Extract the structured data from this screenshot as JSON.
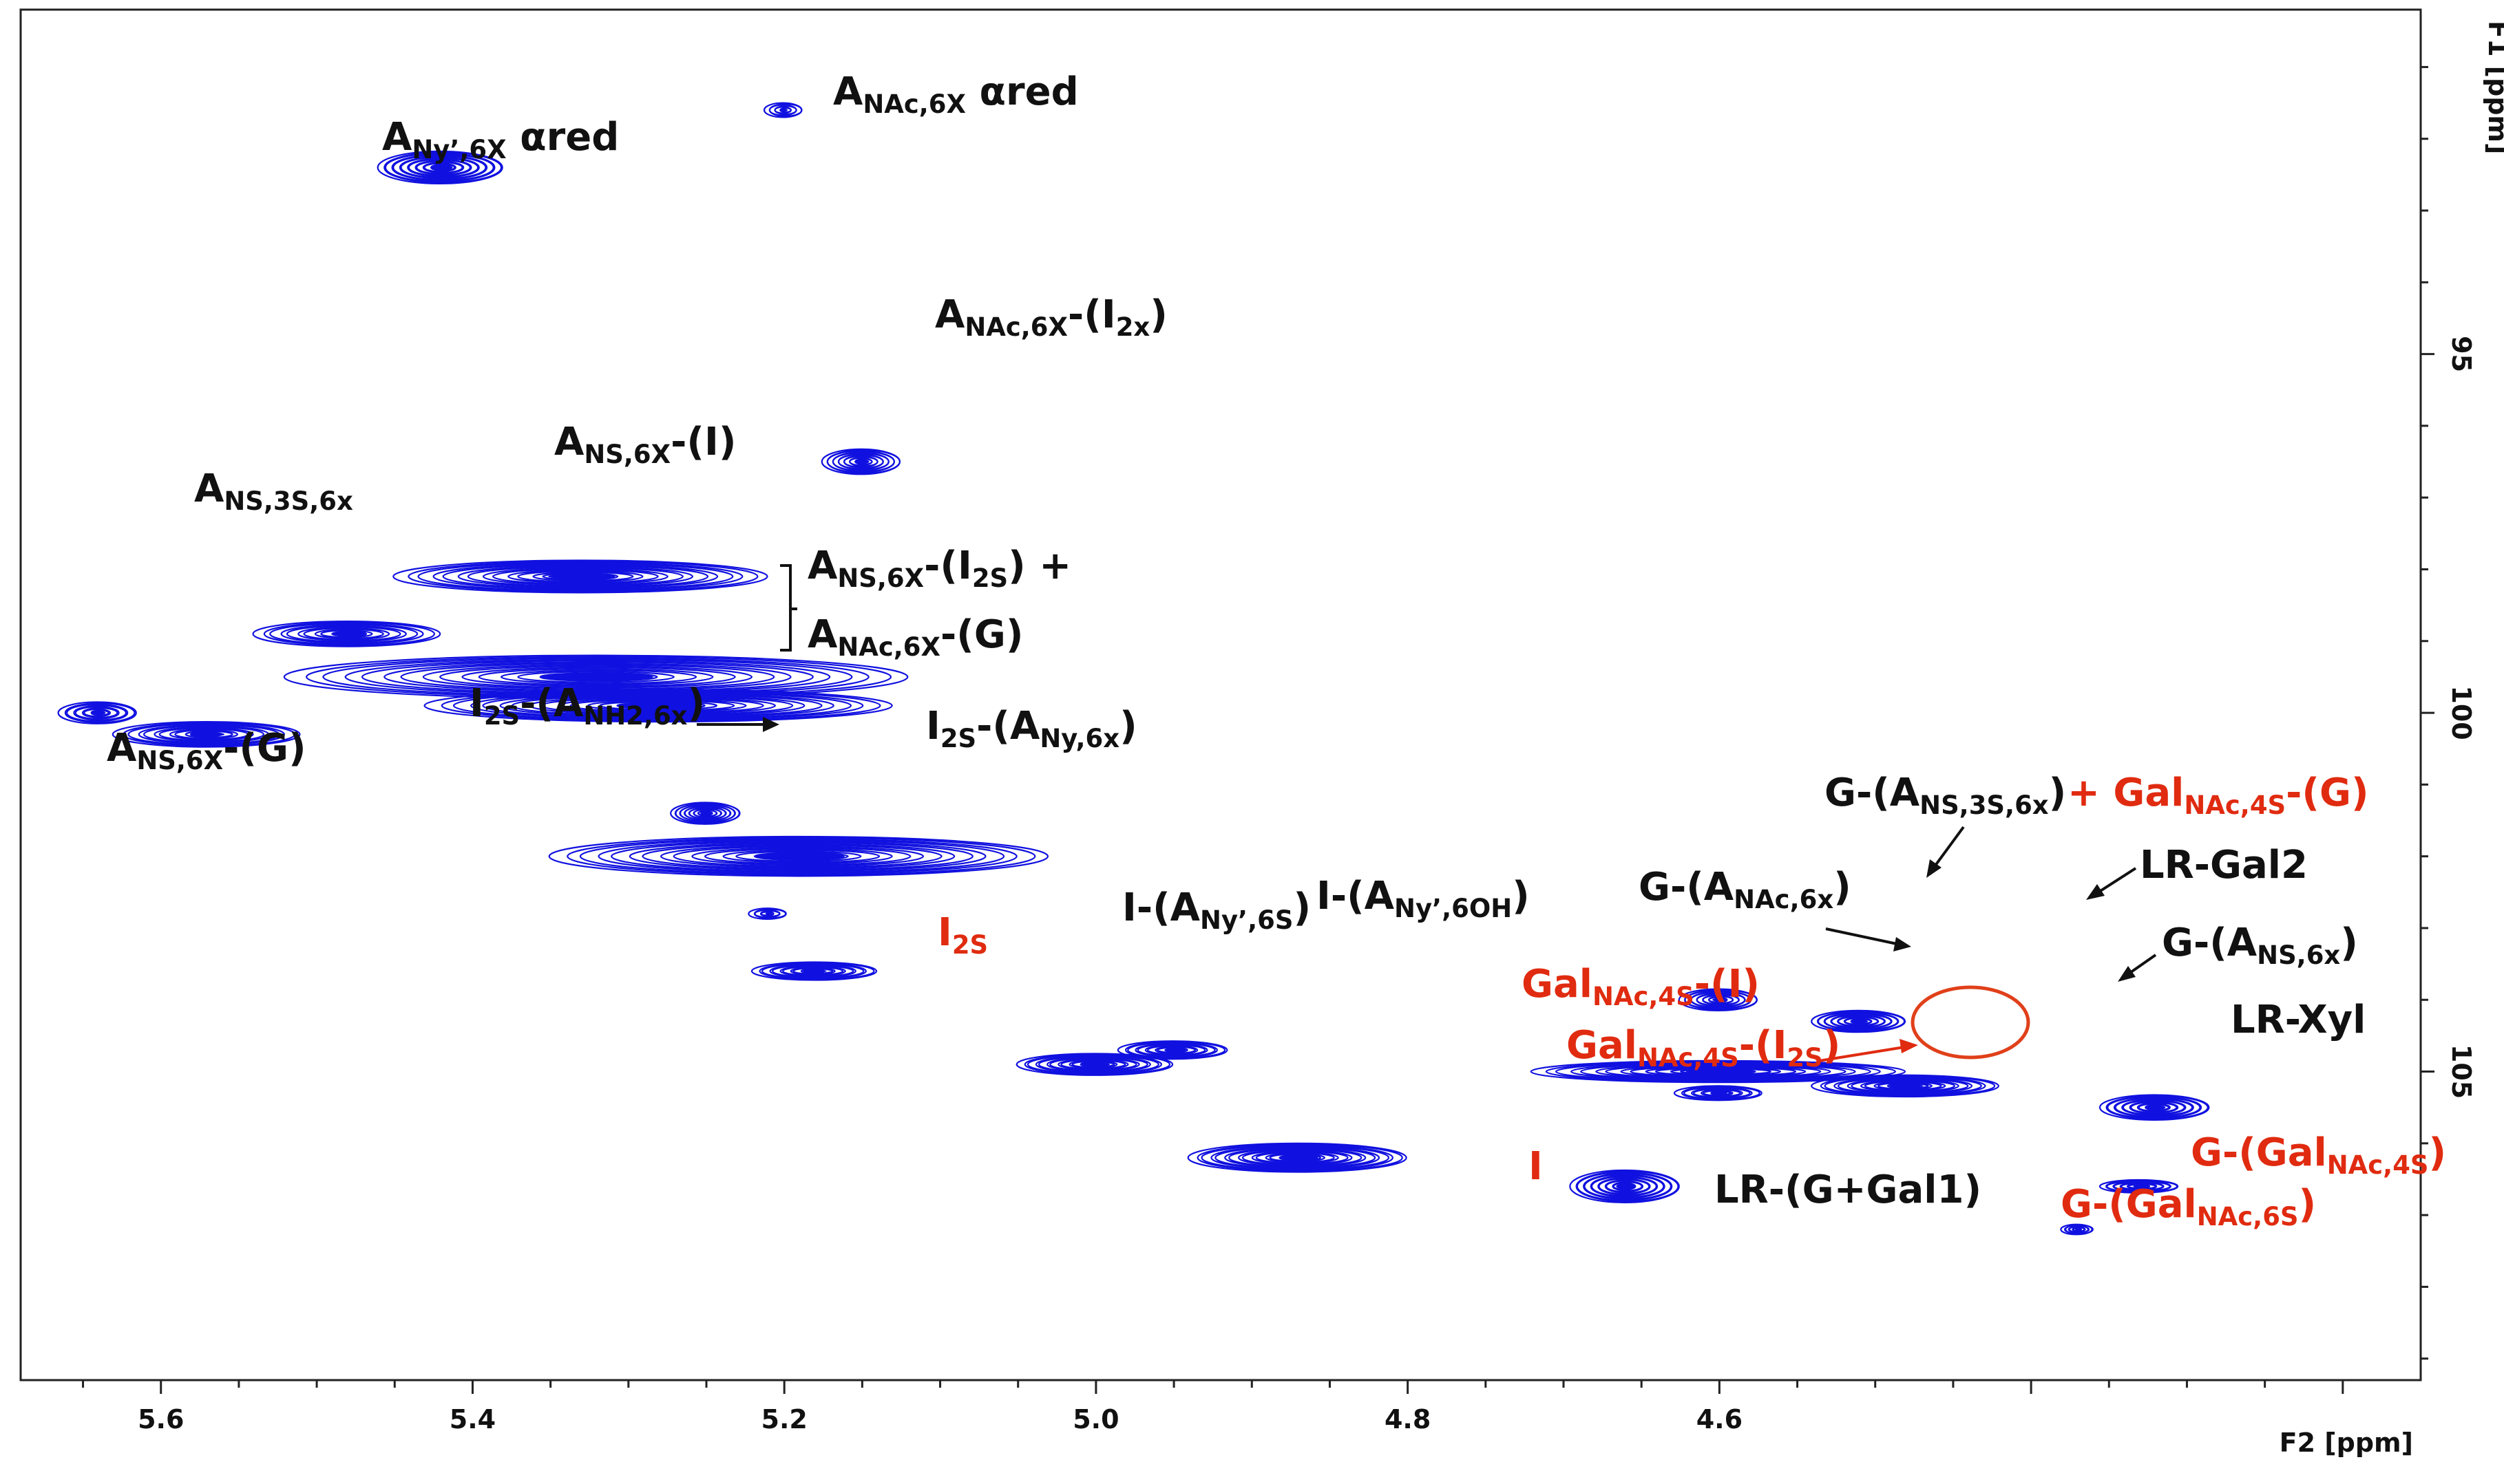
{
  "chart_data": {
    "type": "2d-nmr-contour",
    "xlabel": "F2 [ppm]",
    "ylabel": "F1 [ppm]",
    "x_ticks": [
      "5.6",
      "5.4",
      "5.2",
      "5.0",
      "4.8",
      "4.6"
    ],
    "y_ticks": [
      "95",
      "100",
      "105"
    ],
    "x_range": [
      5.69,
      4.15
    ],
    "y_range": [
      90.2,
      109.3
    ],
    "colors": {
      "contour": "#1010e0",
      "black_label": "#111111",
      "red_label": "#e02b10",
      "circle": "#e0401a"
    },
    "peaks": [
      {
        "name": "A_Ny'6X_ared",
        "x": 5.42,
        "y": 92.4,
        "w": 0.04,
        "h": 0.45,
        "level": 1.0
      },
      {
        "name": "A_NAc6X_ared",
        "x": 5.2,
        "y": 91.6,
        "w": 0.012,
        "h": 0.2,
        "level": 0.25
      },
      {
        "name": "A_NAc6X_I2x",
        "x": 5.15,
        "y": 96.5,
        "w": 0.025,
        "h": 0.35,
        "level": 0.8
      },
      {
        "name": "A_NS6X_I",
        "x": 5.33,
        "y": 98.1,
        "w": 0.12,
        "h": 0.45,
        "level": 0.9
      },
      {
        "name": "A_NS3S6x",
        "x": 5.48,
        "y": 98.9,
        "w": 0.06,
        "h": 0.35,
        "level": 0.6
      },
      {
        "name": "A_NS6X_I2S_cluster",
        "x": 5.32,
        "y": 99.5,
        "w": 0.2,
        "h": 0.6,
        "level": 1.0
      },
      {
        "name": "A_NAc6X_G_cluster",
        "x": 5.28,
        "y": 99.9,
        "w": 0.15,
        "h": 0.45,
        "level": 1.0
      },
      {
        "name": "A_NS6X_G",
        "x": 5.57,
        "y": 100.3,
        "w": 0.06,
        "h": 0.35,
        "level": 0.7
      },
      {
        "name": "A_NS6X_G_tail",
        "x": 5.64,
        "y": 100.0,
        "w": 0.025,
        "h": 0.3,
        "level": 0.45
      },
      {
        "name": "I2S_ANH2",
        "x": 5.25,
        "y": 101.4,
        "w": 0.022,
        "h": 0.3,
        "level": 0.9
      },
      {
        "name": "I2S_ANy6x",
        "x": 5.19,
        "y": 102.0,
        "w": 0.16,
        "h": 0.55,
        "level": 1.0
      },
      {
        "name": "small_a",
        "x": 5.21,
        "y": 102.8,
        "w": 0.012,
        "h": 0.15,
        "level": 0.2
      },
      {
        "name": "I2S",
        "x": 5.18,
        "y": 103.6,
        "w": 0.04,
        "h": 0.25,
        "level": 0.7
      },
      {
        "name": "I_ANy6S",
        "x": 5.0,
        "y": 104.9,
        "w": 0.05,
        "h": 0.3,
        "level": 0.8
      },
      {
        "name": "I_ANy6OH",
        "x": 4.95,
        "y": 104.7,
        "w": 0.035,
        "h": 0.25,
        "level": 0.6
      },
      {
        "name": "I",
        "x": 4.87,
        "y": 106.2,
        "w": 0.07,
        "h": 0.4,
        "level": 1.0
      },
      {
        "name": "LR_G_Gal1",
        "x": 4.66,
        "y": 106.6,
        "w": 0.035,
        "h": 0.45,
        "level": 0.9
      },
      {
        "name": "G_A_NAc6x",
        "x": 4.6,
        "y": 105.0,
        "w": 0.12,
        "h": 0.3,
        "level": 0.9
      },
      {
        "name": "G_A_NS3S6x",
        "x": 4.6,
        "y": 104.0,
        "w": 0.025,
        "h": 0.3,
        "level": 0.75
      },
      {
        "name": "LR_Gal2",
        "x": 4.51,
        "y": 104.3,
        "w": 0.03,
        "h": 0.3,
        "level": 0.8
      },
      {
        "name": "G_A_NS6x",
        "x": 4.48,
        "y": 105.2,
        "w": 0.06,
        "h": 0.3,
        "level": 0.85
      },
      {
        "name": "LR_Xyl",
        "x": 4.32,
        "y": 105.5,
        "w": 0.035,
        "h": 0.35,
        "level": 0.8
      },
      {
        "name": "GalNAc4S_I2S",
        "x": 4.6,
        "y": 105.3,
        "w": 0.028,
        "h": 0.2,
        "level": 0.4
      },
      {
        "name": "G_GalNAc4S",
        "x": 4.33,
        "y": 106.6,
        "w": 0.025,
        "h": 0.18,
        "level": 0.6
      },
      {
        "name": "G_GalNAc6S",
        "x": 4.37,
        "y": 107.2,
        "w": 0.01,
        "h": 0.14,
        "level": 0.3
      }
    ]
  },
  "labels": {
    "a_ny6x_ared": {
      "main": "A",
      "sub": "Ny’,6X",
      "suffix": " αred"
    },
    "a_nac6x_ared": {
      "main": "A",
      "sub": "NAc,6X",
      "suffix": " αred"
    },
    "a_nac6x_i2x": {
      "main": "A",
      "sub": "NAc,6X",
      "mid": "-(I",
      "sub2": "2x",
      "suffix": ")"
    },
    "a_ns6x_i": {
      "main": "A",
      "sub": "NS,6X",
      "suffix": "-(I)"
    },
    "a_ns3s6x": {
      "main": "A",
      "sub": "NS,3S,6x"
    },
    "a_ns6x_i2s": {
      "main": "A",
      "sub": "NS,6X",
      "mid": "-(I",
      "sub2": "2S",
      "suffix": ") +"
    },
    "a_nac6x_g": {
      "main": "A",
      "sub": "NAc,6X",
      "suffix": "-(G)"
    },
    "a_ns6x_g": {
      "main": "A",
      "sub": "NS,6X",
      "suffix": "-(G)"
    },
    "i2s_anh2": {
      "main": "I",
      "sub": "2S",
      "mid": "-(A",
      "sub2": "NH2,6x",
      "suffix": ")"
    },
    "i2s_any6x": {
      "main": "I",
      "sub": "2S",
      "mid": "-(A",
      "sub2": "Ny,6x",
      "suffix": ")"
    },
    "i2s": {
      "main": "I",
      "sub": "2S"
    },
    "i_any6s": {
      "main": "I-(A",
      "sub": "Ny’,6S",
      "suffix": ")"
    },
    "i_any6oh": {
      "main": "I-(A",
      "sub": "Ny’,6OH",
      "suffix": ")"
    },
    "i": {
      "main": "I"
    },
    "g_ans3s6x": {
      "main": "G-(A",
      "sub": "NS,3S,6x",
      "suffix": ")"
    },
    "plus_galnac4s_g": {
      "main": "+ Gal",
      "sub": "NAc,4S",
      "suffix": "-(G)"
    },
    "lr_gal2": {
      "main": "LR-Gal2"
    },
    "g_anac6x": {
      "main": "G-(A",
      "sub": "NAc,6x",
      "suffix": ")"
    },
    "g_ans6x": {
      "main": "G-(A",
      "sub": "NS,6x",
      "suffix": ")"
    },
    "galnac4s_i": {
      "main": "Gal",
      "sub": "NAc,4S",
      "suffix": "-(I)"
    },
    "galnac4s_i2s": {
      "main": "Gal",
      "sub": "NAc,4S",
      "mid": "-(I",
      "sub2": "2S",
      "suffix": ")"
    },
    "lr_xyl": {
      "main": "LR-Xyl"
    },
    "lr_g_gal1": {
      "main": "LR-(G+Gal1)"
    },
    "g_galnac4s": {
      "main": "G-(Gal",
      "sub": "NAc,4S",
      "suffix": ")"
    },
    "g_galnac6s": {
      "main": "G-(Gal",
      "sub": "NAc,6S",
      "suffix": ")"
    }
  }
}
